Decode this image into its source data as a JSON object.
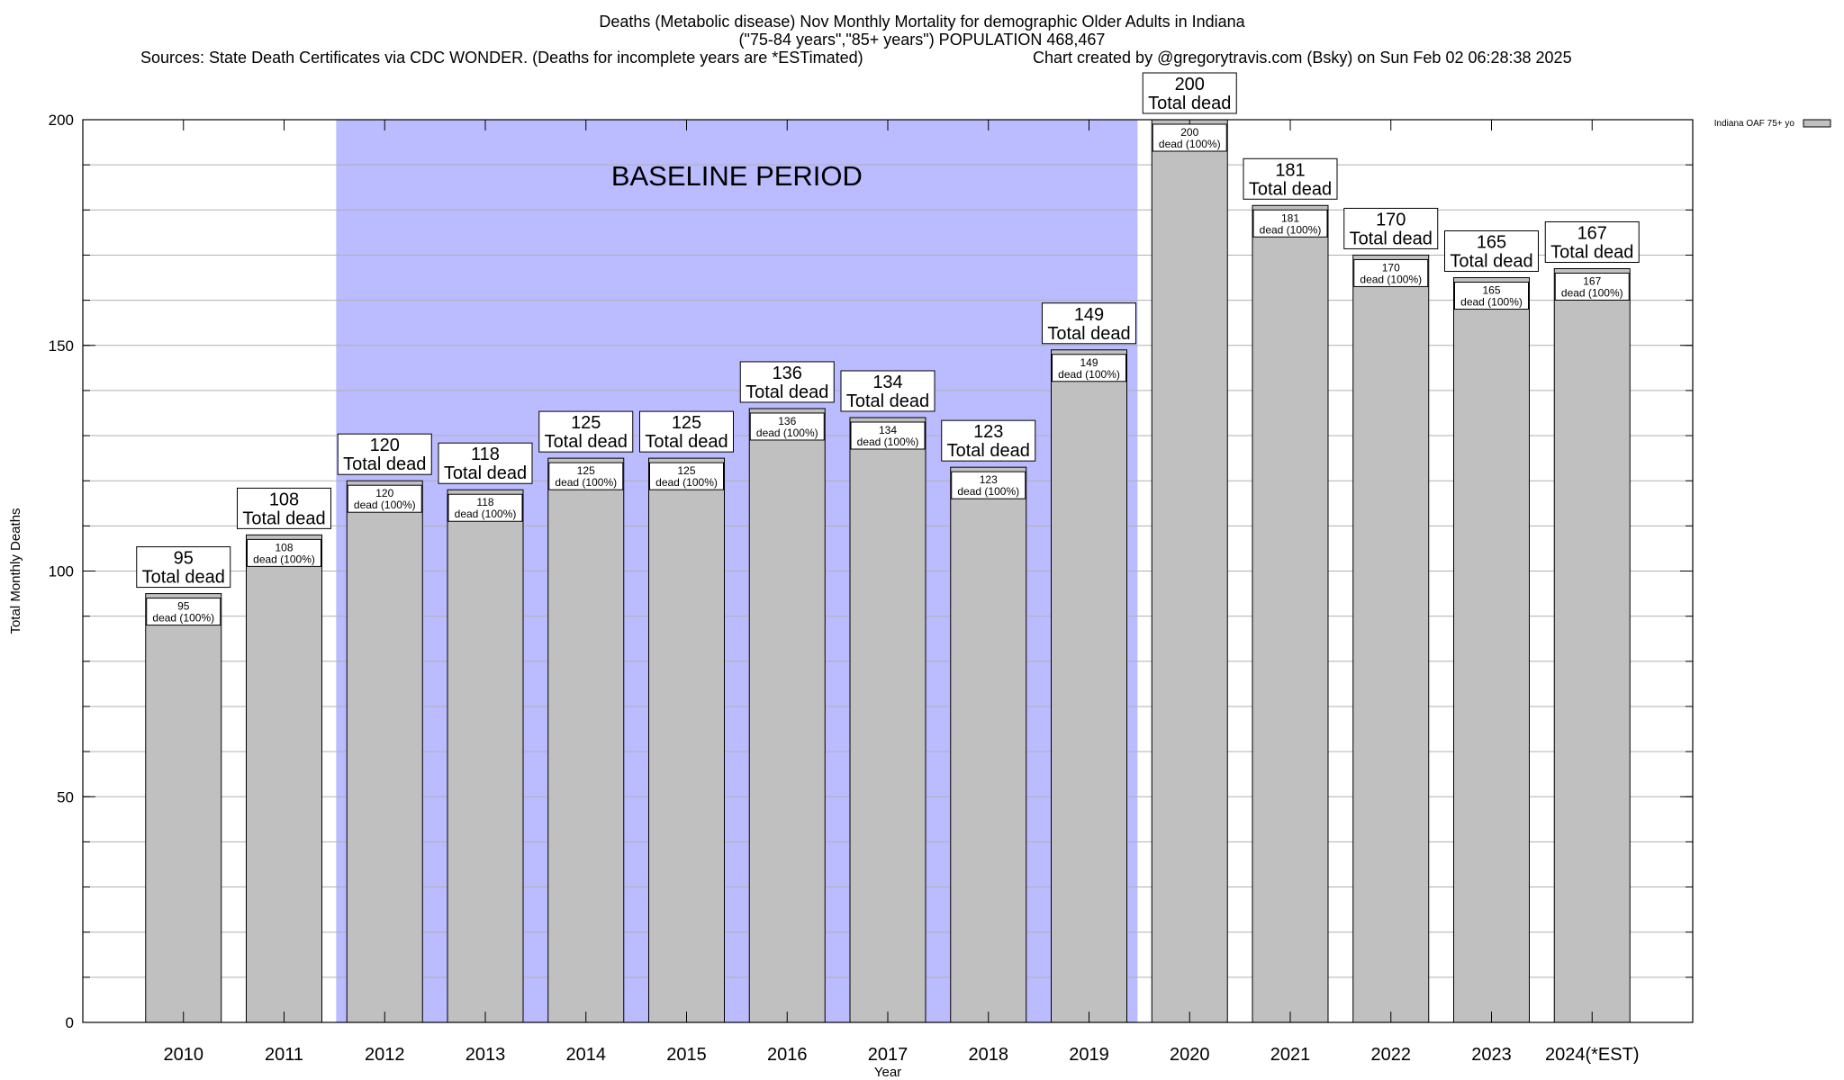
{
  "header": {
    "title_line1": "Deaths (Metabolic disease) Nov Monthly Mortality for demographic Older Adults in Indiana",
    "title_line2": "(\"75-84 years\",\"85+ years\") POPULATION 468,467",
    "sources": "Sources: State Death Certificates via CDC WONDER. (Deaths for incomplete years are *ESTimated)",
    "credit": "Chart created by @gregorytravis.com (Bsky) on Sun Feb 02 06:28:38 2025"
  },
  "chart_data": {
    "type": "bar",
    "categories": [
      "2010",
      "2011",
      "2012",
      "2013",
      "2014",
      "2015",
      "2016",
      "2017",
      "2018",
      "2019",
      "2020",
      "2021",
      "2022",
      "2023",
      "2024(*EST)"
    ],
    "series": [
      {
        "name": "Indiana OAF 75+ yo",
        "values": [
          95,
          108,
          120,
          118,
          125,
          125,
          136,
          134,
          123,
          149,
          200,
          181,
          170,
          165,
          167
        ]
      }
    ],
    "xlabel": "Year",
    "ylabel": "Total Monthly Deaths",
    "ylim": [
      0,
      200
    ],
    "yticks": [
      0,
      50,
      100,
      150,
      200
    ],
    "minor_grid_step": 10,
    "grid": true,
    "legend_position": "top-right",
    "bar_label_total_suffix": "Total dead",
    "bar_label_inner_suffix": "dead (100%)",
    "baseline": {
      "label": "BASELINE PERIOD",
      "start_category": "2012",
      "end_category": "2019",
      "color": "#bbbbff"
    },
    "bar_color": "#c0c0c0",
    "bar_edge_color": "#000000"
  }
}
